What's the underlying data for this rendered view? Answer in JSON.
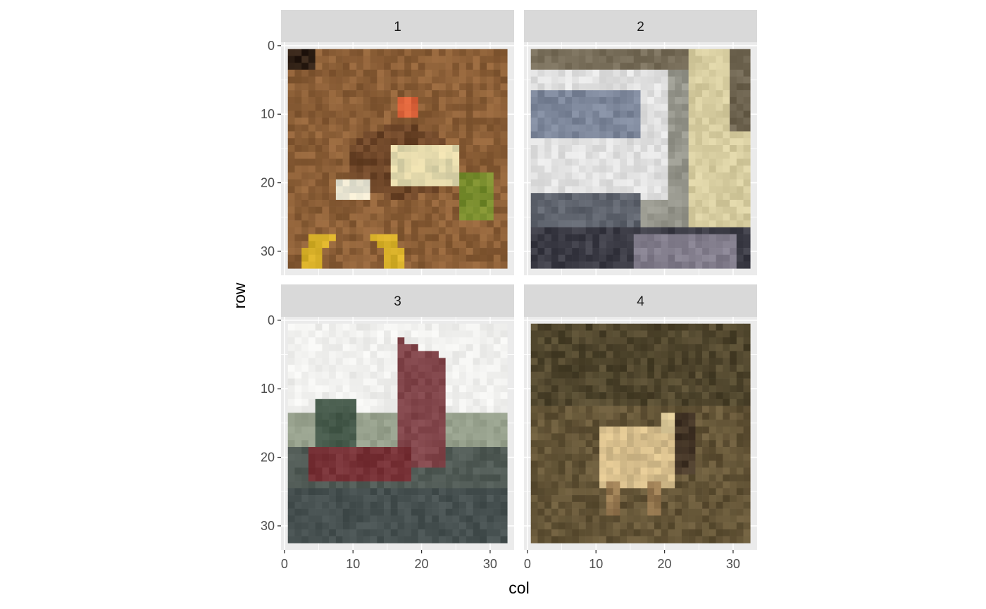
{
  "chart_data": {
    "type": "heatmap",
    "description_kind": "faceted raster image plot",
    "xlabel": "col",
    "ylabel": "row",
    "xlim": [
      0,
      32
    ],
    "ylim": [
      0,
      32
    ],
    "y_reversed": true,
    "x_ticks": [
      "0",
      "10",
      "20",
      "30"
    ],
    "y_ticks": [
      "0",
      "10",
      "20",
      "30"
    ],
    "grid": true,
    "facets": [
      {
        "label": "1",
        "subject": "frog"
      },
      {
        "label": "2",
        "subject": "truck"
      },
      {
        "label": "3",
        "subject": "dump truck"
      },
      {
        "label": "4",
        "subject": "deer"
      }
    ]
  },
  "colors": {
    "panel_bg": "#ebebeb",
    "strip_bg": "#d9d9d9",
    "grid": "#ffffff",
    "tick": "#333333"
  }
}
